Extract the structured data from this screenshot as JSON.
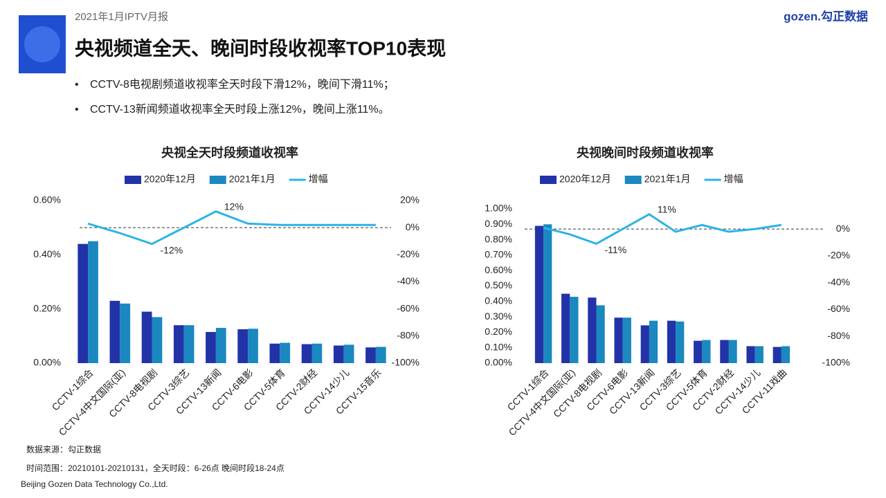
{
  "header": {
    "report": "2021年1月IPTV月报",
    "title": "央视频道全天、晚间时段收视率TOP10表现",
    "brand": "gozen.勾正数据"
  },
  "bullets": [
    "CCTV-8电视剧频道收视率全天时段下滑12%，晚间下滑11%；",
    "CCTV-13新闻频道收视率全天时段上涨12%，晚间上涨11%。"
  ],
  "chart_data": [
    {
      "type": "combo",
      "title": "央视全天时段频道收视率",
      "categories": [
        "CCTV-1综合",
        "CCTV-4中文国际(亚)",
        "CCTV-8电视剧",
        "CCTV-3综艺",
        "CCTV-13新闻",
        "CCTV-6电影",
        "CCTV-5体育",
        "CCTV-2财经",
        "CCTV-14少儿",
        "CCTV-15音乐"
      ],
      "series": [
        {
          "name": "2020年12月",
          "color": "#2233a8",
          "values": [
            0.44,
            0.23,
            0.19,
            0.14,
            0.115,
            0.125,
            0.072,
            0.07,
            0.065,
            0.058
          ]
        },
        {
          "name": "2021年1月",
          "color": "#1b88bf",
          "values": [
            0.45,
            0.22,
            0.17,
            0.14,
            0.13,
            0.127,
            0.075,
            0.072,
            0.068,
            0.06
          ]
        },
        {
          "name": "增幅",
          "color": "#2ab4e6",
          "axis": "y2",
          "values": [
            3,
            -4,
            -12,
            0,
            12,
            3,
            2,
            2,
            2,
            2
          ],
          "value_labels": [
            null,
            null,
            "-12%",
            null,
            "12%",
            null,
            null,
            null,
            null,
            null
          ]
        }
      ],
      "ylim": [
        0,
        0.6
      ],
      "yticks": [
        {
          "value": 0,
          "label": "0.00%"
        },
        {
          "value": 0.2,
          "label": "0.20%"
        },
        {
          "value": 0.4,
          "label": "0.40%"
        },
        {
          "value": 0.6,
          "label": "0.60%"
        }
      ],
      "y2lim": [
        -100,
        20
      ],
      "y2ticks": [
        {
          "value": -100,
          "label": "-100%"
        },
        {
          "value": -80,
          "label": "-80%"
        },
        {
          "value": -60,
          "label": "-60%"
        },
        {
          "value": -40,
          "label": "-40%"
        },
        {
          "value": -20,
          "label": "-20%"
        },
        {
          "value": 0,
          "label": "0%"
        },
        {
          "value": 20,
          "label": "20%"
        }
      ],
      "grid": false
    },
    {
      "type": "combo",
      "title": "央视晚间时段频道收视率",
      "categories": [
        "CCTV-1综合",
        "CCTV-4中文国际(亚)",
        "CCTV-8电视剧",
        "CCTV-6电影",
        "CCTV-13新闻",
        "CCTV-3综艺",
        "CCTV-5体育",
        "CCTV-2财经",
        "CCTV-14少儿",
        "CCTV-11戏曲"
      ],
      "series": [
        {
          "name": "2020年12月",
          "color": "#2233a8",
          "values": [
            0.89,
            0.45,
            0.425,
            0.295,
            0.245,
            0.275,
            0.145,
            0.15,
            0.11,
            0.105
          ]
        },
        {
          "name": "2021年1月",
          "color": "#1b88bf",
          "values": [
            0.9,
            0.43,
            0.375,
            0.295,
            0.275,
            0.27,
            0.15,
            0.15,
            0.11,
            0.11
          ]
        },
        {
          "name": "增幅",
          "color": "#2ab4e6",
          "axis": "y2",
          "values": [
            1,
            -4,
            -11,
            0,
            11,
            -2,
            3,
            -2,
            0,
            3
          ],
          "value_labels": [
            null,
            null,
            "-11%",
            null,
            "11%",
            null,
            null,
            null,
            null,
            null
          ]
        }
      ],
      "ylim": [
        0,
        1
      ],
      "yticks": [
        {
          "value": 0,
          "label": "0.00%"
        },
        {
          "value": 0.1,
          "label": "0.10%"
        },
        {
          "value": 0.2,
          "label": "0.20%"
        },
        {
          "value": 0.3,
          "label": "0.30%"
        },
        {
          "value": 0.4,
          "label": "0.40%"
        },
        {
          "value": 0.5,
          "label": "0.50%"
        },
        {
          "value": 0.6,
          "label": "0.60%"
        },
        {
          "value": 0.7,
          "label": "0.70%"
        },
        {
          "value": 0.8,
          "label": "0.80%"
        },
        {
          "value": 0.9,
          "label": "0.90%"
        },
        {
          "value": 1,
          "label": "1.00%"
        }
      ],
      "y2lim": [
        -100,
        15
      ],
      "y2ticks": [
        {
          "value": -100,
          "label": "-100%"
        },
        {
          "value": -80,
          "label": "-80%"
        },
        {
          "value": -60,
          "label": "-60%"
        },
        {
          "value": -40,
          "label": "-40%"
        },
        {
          "value": -20,
          "label": "-20%"
        },
        {
          "value": 0,
          "label": "0%"
        }
      ],
      "grid": false
    }
  ],
  "footer": {
    "source": "数据来源：勾正数据",
    "range": "时间范围：20210101-20210131，全天时段：6-26点  晚间时段18-24点",
    "company": "Beijing Gozen Data Technology Co.,Ltd."
  }
}
